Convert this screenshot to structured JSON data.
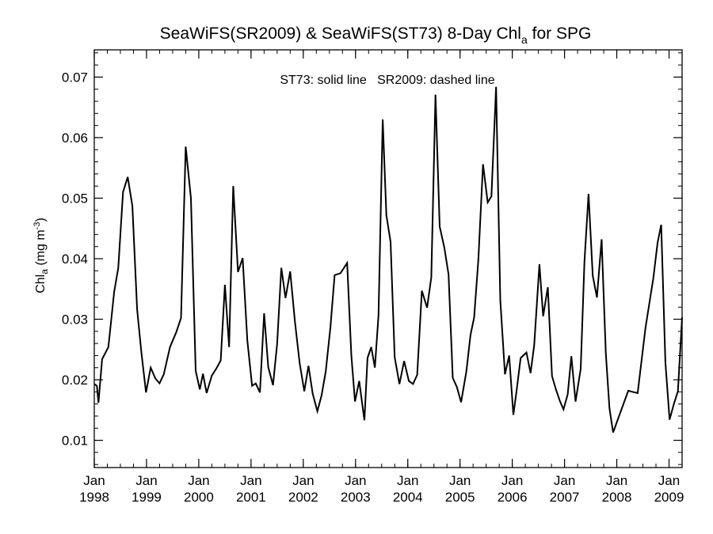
{
  "chart_data": {
    "type": "line",
    "title_parts": {
      "main": "SeaWiFS(SR2009) & SeaWiFS(ST73) 8-Day Chl",
      "sub": "a",
      "tail": " for SPG"
    },
    "ylabel_parts": {
      "base": "Chl",
      "sub": "a",
      "unit": " (mg m",
      "sup": "-3",
      "close": ")"
    },
    "annotation": "ST73: solid line   SR2009: dashed line",
    "xlim": [
      1998.0,
      2009.25
    ],
    "ylim": [
      0.0055,
      0.0745
    ],
    "yticks": [
      "0.01",
      "0.02",
      "0.03",
      "0.04",
      "0.05",
      "0.06",
      "0.07"
    ],
    "ytick_values": [
      0.01,
      0.02,
      0.03,
      0.04,
      0.05,
      0.06,
      0.07
    ],
    "xticks": [
      {
        "x": 1998,
        "month": "Jan",
        "year": "1998"
      },
      {
        "x": 1999,
        "month": "Jan",
        "year": "1999"
      },
      {
        "x": 2000,
        "month": "Jan",
        "year": "2000"
      },
      {
        "x": 2001,
        "month": "Jan",
        "year": "2001"
      },
      {
        "x": 2002,
        "month": "Jan",
        "year": "2002"
      },
      {
        "x": 2003,
        "month": "Jan",
        "year": "2003"
      },
      {
        "x": 2004,
        "month": "Jan",
        "year": "2004"
      },
      {
        "x": 2005,
        "month": "Jan",
        "year": "2005"
      },
      {
        "x": 2006,
        "month": "Jan",
        "year": "2006"
      },
      {
        "x": 2007,
        "month": "Jan",
        "year": "2007"
      },
      {
        "x": 2008,
        "month": "Jan",
        "year": "2008"
      },
      {
        "x": 2009,
        "month": "Jan",
        "year": "2009"
      }
    ],
    "grid": false,
    "series": [
      {
        "style": "solid",
        "color": "#000000",
        "x": [
          1998.0,
          1998.05,
          1998.08,
          1998.15,
          1998.27,
          1998.38,
          1998.46,
          1998.55,
          1998.64,
          1998.73,
          1998.82,
          1998.9,
          1998.99,
          1999.08,
          1999.17,
          1999.25,
          1999.33,
          1999.45,
          1999.57,
          1999.66,
          1999.75,
          1999.85,
          1999.94,
          2000.02,
          2000.08,
          2000.15,
          2000.25,
          2000.34,
          2000.42,
          2000.5,
          2000.58,
          2000.66,
          2000.75,
          2000.84,
          2000.93,
          2001.02,
          2001.09,
          2001.17,
          2001.25,
          2001.33,
          2001.42,
          2001.5,
          2001.58,
          2001.66,
          2001.75,
          2001.84,
          2001.93,
          2002.02,
          2002.1,
          2002.18,
          2002.27,
          2002.35,
          2002.43,
          2002.52,
          2002.6,
          2002.71,
          2002.84,
          2002.92,
          2002.99,
          2003.07,
          2003.17,
          2003.23,
          2003.3,
          2003.37,
          2003.44,
          2003.52,
          2003.59,
          2003.67,
          2003.75,
          2003.84,
          2003.93,
          2004.02,
          2004.1,
          2004.18,
          2004.27,
          2004.37,
          2004.45,
          2004.53,
          2004.61,
          2004.7,
          2004.78,
          2004.86,
          2004.94,
          2005.02,
          2005.12,
          2005.2,
          2005.27,
          2005.35,
          2005.44,
          2005.53,
          2005.6,
          2005.69,
          2005.77,
          2005.86,
          2005.94,
          2006.02,
          2006.08,
          2006.16,
          2006.27,
          2006.35,
          2006.42,
          2006.52,
          2006.59,
          2006.68,
          2006.76,
          2006.84,
          2006.91,
          2006.98,
          2007.06,
          2007.13,
          2007.21,
          2007.31,
          2007.38,
          2007.46,
          2007.54,
          2007.62,
          2007.71,
          2007.79,
          2007.86,
          2007.93,
          2008.22,
          2008.3,
          2008.4,
          2008.55,
          2008.7,
          2008.78,
          2008.85,
          2008.93,
          2009.01,
          2009.09,
          2009.17,
          2009.25
        ],
        "y": [
          0.0193,
          0.019,
          0.0162,
          0.0234,
          0.0254,
          0.0345,
          0.0385,
          0.051,
          0.0535,
          0.0487,
          0.0316,
          0.0246,
          0.0179,
          0.022,
          0.0202,
          0.0194,
          0.0209,
          0.0254,
          0.0279,
          0.0302,
          0.0585,
          0.05,
          0.0215,
          0.0184,
          0.021,
          0.0178,
          0.0207,
          0.0219,
          0.0232,
          0.0357,
          0.0254,
          0.052,
          0.0378,
          0.0401,
          0.0265,
          0.019,
          0.0194,
          0.0179,
          0.031,
          0.0221,
          0.0191,
          0.0259,
          0.0385,
          0.0335,
          0.0379,
          0.0296,
          0.0228,
          0.0181,
          0.0223,
          0.0177,
          0.0148,
          0.0174,
          0.0214,
          0.0287,
          0.0373,
          0.0376,
          0.0393,
          0.024,
          0.0164,
          0.0198,
          0.0133,
          0.0236,
          0.0254,
          0.022,
          0.0307,
          0.063,
          0.0472,
          0.0428,
          0.0237,
          0.0193,
          0.0231,
          0.0198,
          0.0193,
          0.0208,
          0.0347,
          0.0319,
          0.0369,
          0.0671,
          0.0453,
          0.0418,
          0.0374,
          0.0203,
          0.0188,
          0.0163,
          0.0213,
          0.0274,
          0.0303,
          0.0398,
          0.0556,
          0.0493,
          0.0503,
          0.0684,
          0.0332,
          0.0209,
          0.024,
          0.0142,
          0.018,
          0.0236,
          0.0245,
          0.0211,
          0.0257,
          0.0391,
          0.0305,
          0.0353,
          0.0206,
          0.0183,
          0.0165,
          0.0151,
          0.0176,
          0.0239,
          0.0164,
          0.0218,
          0.0394,
          0.0507,
          0.0372,
          0.0336,
          0.0432,
          0.0244,
          0.0153,
          0.0113,
          0.0182,
          0.018,
          0.0178,
          0.0286,
          0.0368,
          0.0426,
          0.0456,
          0.0229,
          0.0134,
          0.0159,
          0.0181,
          0.0303
        ]
      }
    ]
  }
}
